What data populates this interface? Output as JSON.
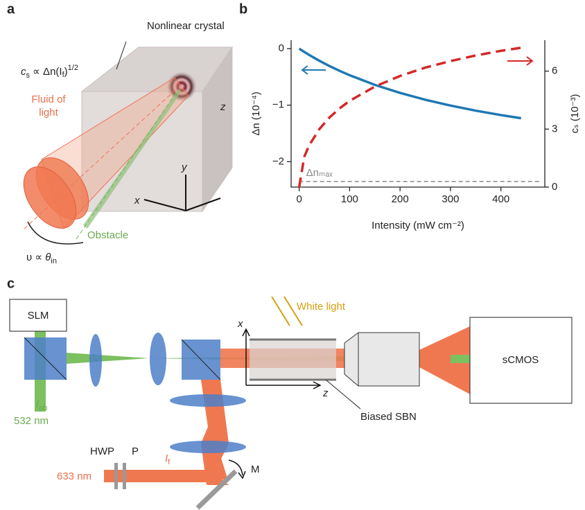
{
  "panel_a": {
    "label": "a",
    "crystal": "Nonlinear crystal",
    "sound_speed": [
      "c",
      "s",
      " ∝ Δn(I",
      "f",
      ")",
      "1/2"
    ],
    "fluid": [
      "Fluid of",
      "light"
    ],
    "axes": [
      "z",
      "y",
      "x"
    ],
    "obstacle": "Obstacle",
    "velocity": [
      "υ ∝ ",
      "θ",
      "in"
    ]
  },
  "chart_data": {
    "type": "line",
    "panel_label": "b",
    "x_label": "Intensity (mW cm⁻²)",
    "y_label": "Δn (10⁻⁴)",
    "y2_label": "cₛ (10⁻³)",
    "x": [
      0,
      10,
      20,
      40,
      60,
      80,
      100,
      150,
      200,
      250,
      300,
      350,
      400,
      440
    ],
    "series": [
      {
        "color": "#1f77b4",
        "dash": false,
        "values": [
          0,
          -0.057,
          -0.112,
          -0.214,
          -0.307,
          -0.392,
          -0.47,
          -0.641,
          -0.783,
          -0.904,
          -1.007,
          -1.097,
          -1.175,
          -1.231
        ]
      },
      {
        "color": "#d62728",
        "dash": true,
        "axis": "y2",
        "values": [
          0,
          1.56,
          2.17,
          3.0,
          3.6,
          4.07,
          4.46,
          5.2,
          5.75,
          6.18,
          6.52,
          6.81,
          7.05,
          7.21
        ]
      }
    ],
    "reference_line": {
      "label": "Δnₘₐₓ",
      "value": -2.35,
      "color": "#888"
    },
    "xlim": [
      -16,
      487
    ],
    "xticks": [
      0,
      100,
      200,
      300,
      400
    ],
    "ylim": [
      -2.45,
      0.15
    ],
    "yticks": [
      {
        "value": -2,
        "label": "−2"
      },
      {
        "value": -1,
        "label": "−1"
      },
      0
    ],
    "y2lim": [
      0,
      7.6
    ],
    "y2ticks": [
      0,
      3,
      6
    ]
  },
  "panel_c": {
    "label": "c",
    "slm": "SLM",
    "white_light": "White light",
    "axes": [
      "x",
      "z"
    ],
    "camera": "sCMOS",
    "obstacle_beam": [
      "I",
      "ob"
    ],
    "green_wavelength": "532 nm",
    "crystal": "Biased SBN",
    "hwp": "HWP",
    "polarizer": "P",
    "fluid_beam": [
      "I",
      "f"
    ],
    "mirror": "M",
    "red_wavelength": "633 nm"
  }
}
